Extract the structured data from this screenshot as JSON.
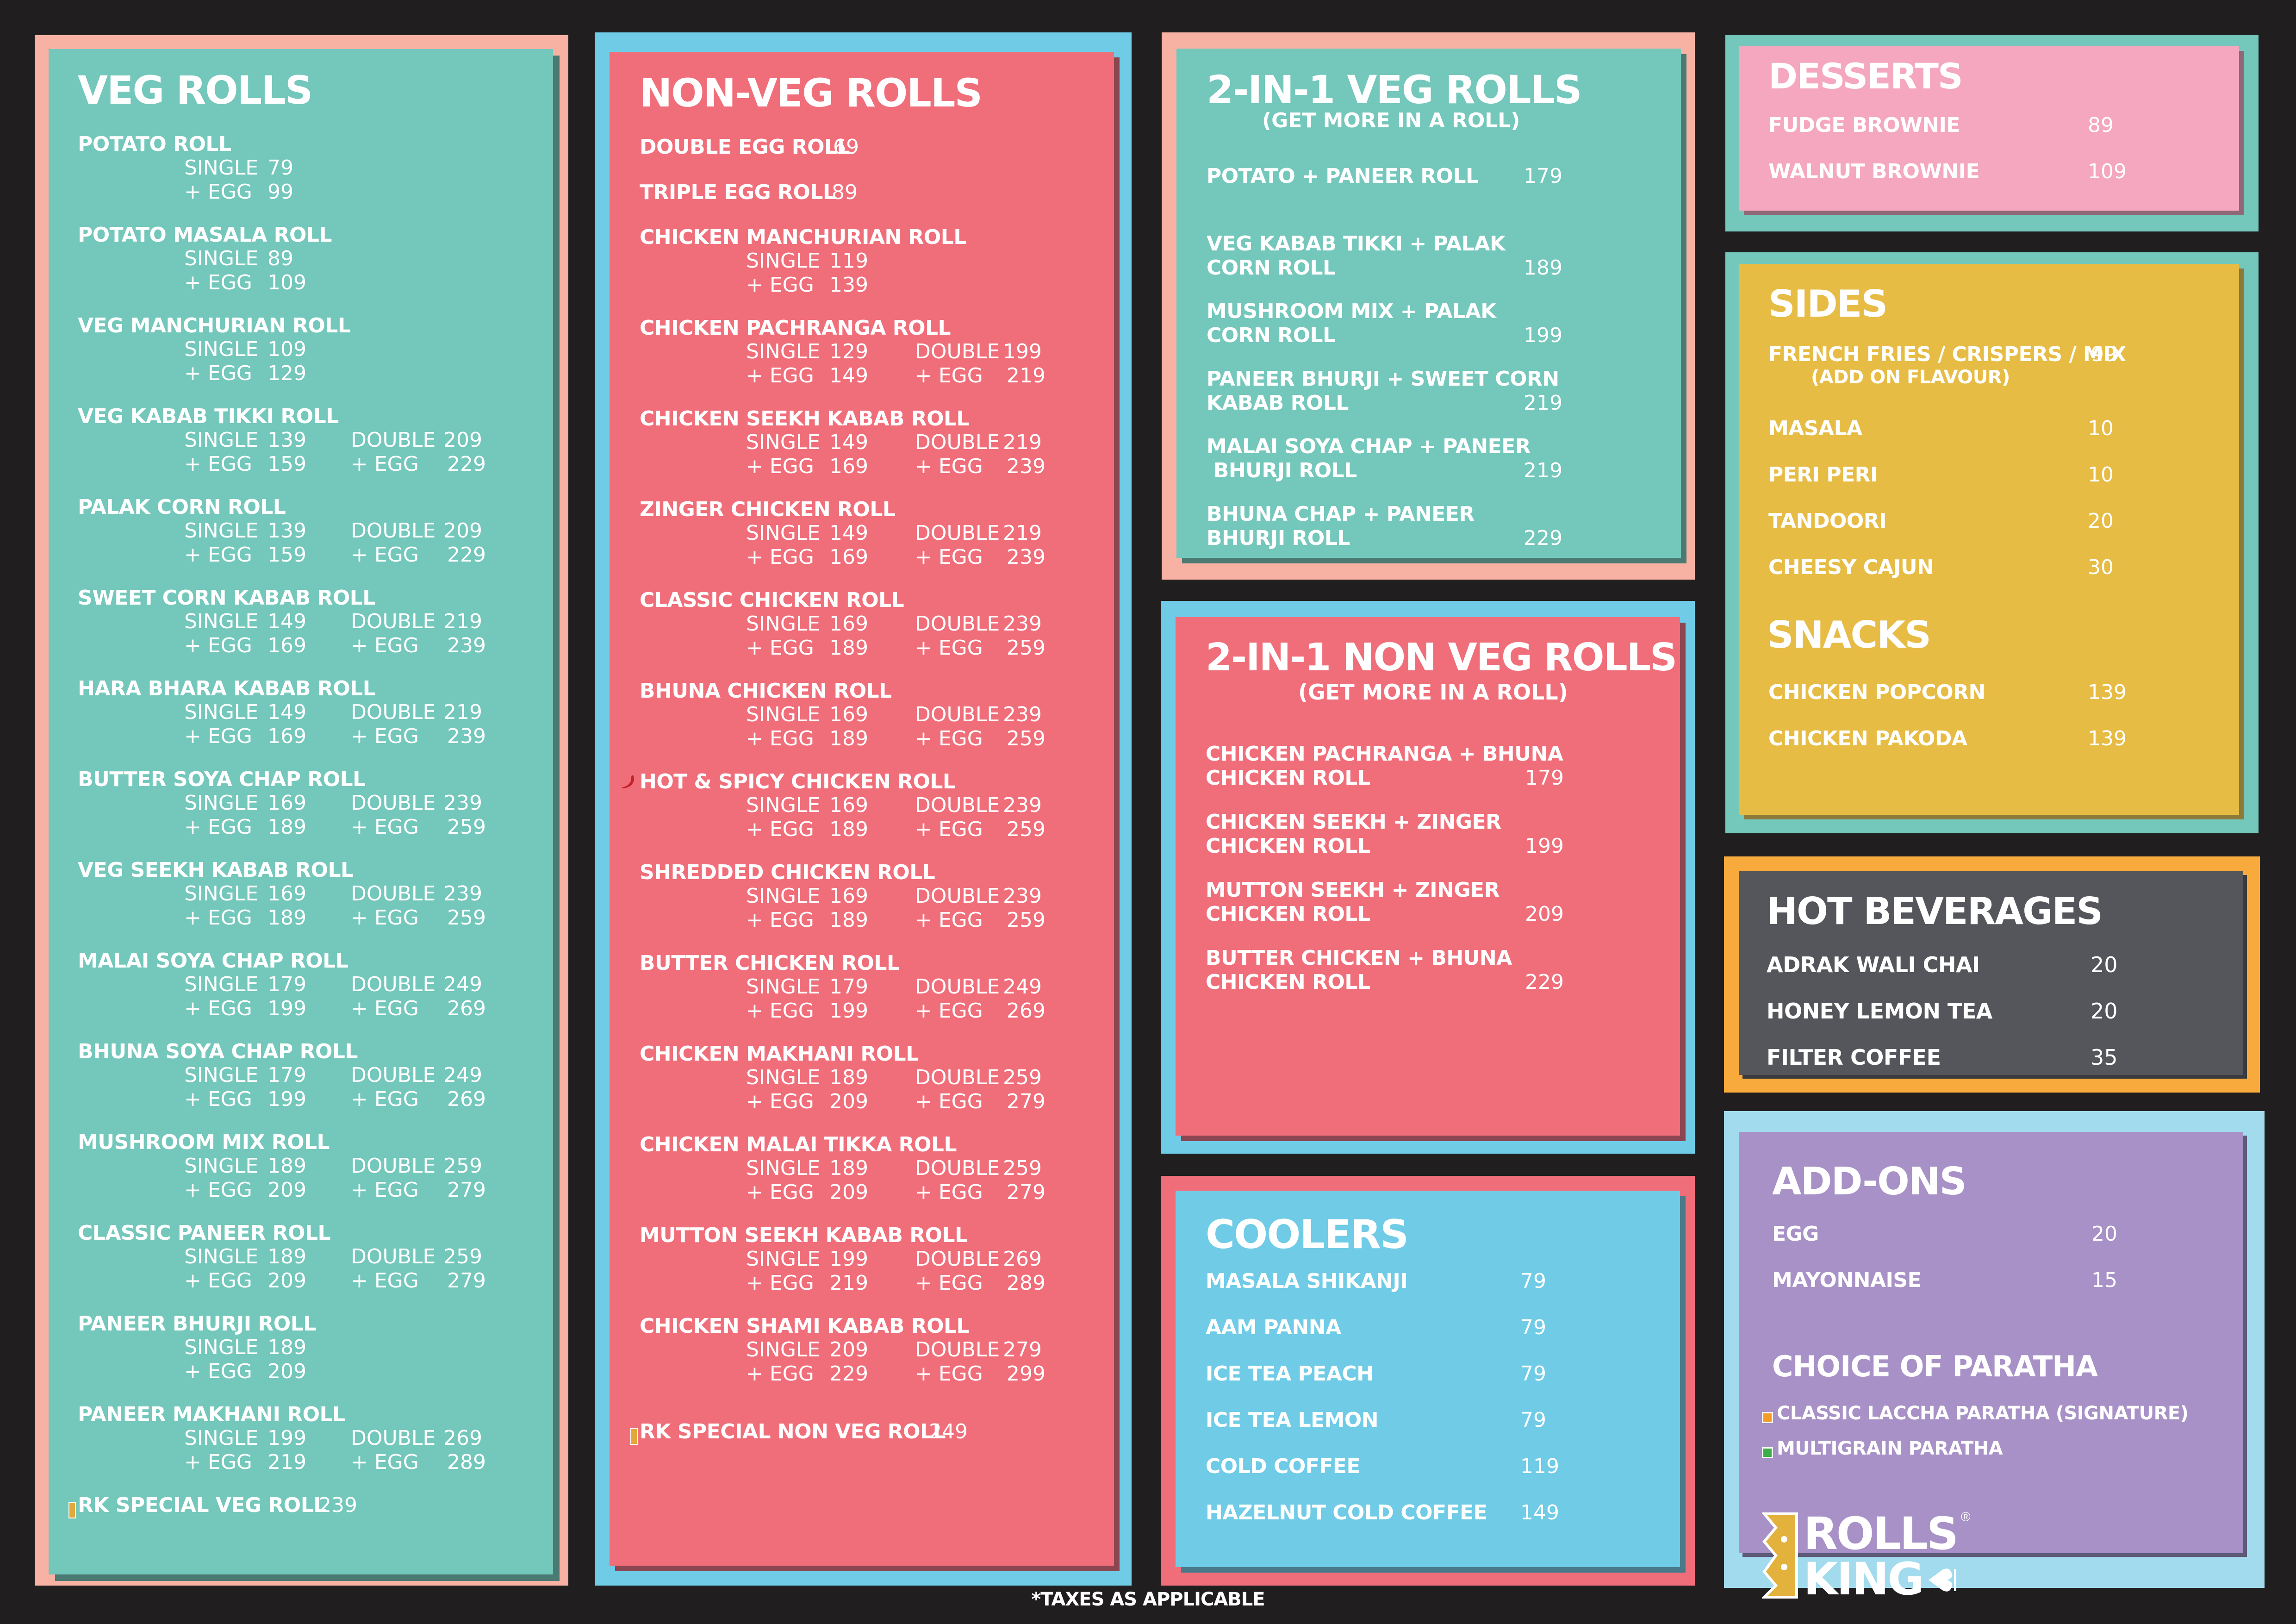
{
  "colors": {
    "background": "#201e1f",
    "teal": "#73c7bb",
    "salmon": "#f8b2a4",
    "coral": "#f06e7a",
    "sky": "#6fcbe6",
    "pink": "#f4a7bf",
    "mustard": "#e7bc45",
    "charcoal": "#55565b",
    "orange": "#f8ab3c",
    "lavender": "#a791c6",
    "lightblue": "#a2dbee"
  },
  "veg_rolls": {
    "title": "VEG ROLLS",
    "items": [
      {
        "name": "POTATO ROLL",
        "single": "79",
        "single_egg": "99"
      },
      {
        "name": "POTATO MASALA ROLL",
        "single": "89",
        "single_egg": "109"
      },
      {
        "name": "VEG MANCHURIAN ROLL",
        "single": "109",
        "single_egg": "129"
      },
      {
        "name": "VEG KABAB TIKKI ROLL",
        "single": "139",
        "single_egg": "159",
        "double": "209",
        "double_egg": "229"
      },
      {
        "name": "PALAK CORN ROLL",
        "single": "139",
        "single_egg": "159",
        "double": "209",
        "double_egg": "229"
      },
      {
        "name": "SWEET CORN KABAB ROLL",
        "single": "149",
        "single_egg": "169",
        "double": "219",
        "double_egg": "239"
      },
      {
        "name": "HARA BHARA KABAB ROLL",
        "single": "149",
        "single_egg": "169",
        "double": "219",
        "double_egg": "239"
      },
      {
        "name": "BUTTER SOYA CHAP ROLL",
        "single": "169",
        "single_egg": "189",
        "double": "239",
        "double_egg": "259"
      },
      {
        "name": "VEG SEEKH KABAB ROLL",
        "single": "169",
        "single_egg": "189",
        "double": "239",
        "double_egg": "259"
      },
      {
        "name": "MALAI SOYA CHAP ROLL",
        "single": "179",
        "single_egg": "199",
        "double": "249",
        "double_egg": "269"
      },
      {
        "name": "BHUNA SOYA CHAP ROLL",
        "single": "179",
        "single_egg": "199",
        "double": "249",
        "double_egg": "269"
      },
      {
        "name": "MUSHROOM MIX ROLL",
        "single": "189",
        "single_egg": "209",
        "double": "259",
        "double_egg": "279"
      },
      {
        "name": "CLASSIC PANEER ROLL",
        "single": "189",
        "single_egg": "209",
        "double": "259",
        "double_egg": "279"
      },
      {
        "name": "PANEER BHURJI ROLL",
        "single": "189",
        "single_egg": "209"
      },
      {
        "name": "PANEER MAKHANI ROLL",
        "single": "199",
        "single_egg": "219",
        "double": "269",
        "double_egg": "289"
      }
    ],
    "special": {
      "name": "RK SPECIAL VEG ROLL",
      "price": "239",
      "icon": "crown-icon"
    }
  },
  "labels": {
    "single": "SINGLE",
    "double": "DOUBLE",
    "plus_egg": "+ EGG"
  },
  "non_veg_rolls": {
    "title": "NON-VEG ROLLS",
    "simple_items": [
      {
        "name": "DOUBLE EGG ROLL",
        "price": "69"
      },
      {
        "name": "TRIPLE EGG ROLL",
        "price": "89"
      }
    ],
    "items": [
      {
        "name": "CHICKEN MANCHURIAN ROLL",
        "single": "119",
        "single_egg": "139"
      },
      {
        "name": "CHICKEN PACHRANGA ROLL",
        "single": "129",
        "single_egg": "149",
        "double": "199",
        "double_egg": "219"
      },
      {
        "name": "CHICKEN SEEKH KABAB ROLL",
        "single": "149",
        "single_egg": "169",
        "double": "219",
        "double_egg": "239"
      },
      {
        "name": "ZINGER CHICKEN ROLL",
        "single": "149",
        "single_egg": "169",
        "double": "219",
        "double_egg": "239"
      },
      {
        "name": "CLASSIC CHICKEN ROLL",
        "single": "169",
        "single_egg": "189",
        "double": "239",
        "double_egg": "259"
      },
      {
        "name": "BHUNA CHICKEN ROLL",
        "single": "169",
        "single_egg": "189",
        "double": "239",
        "double_egg": "259"
      },
      {
        "name": "HOT & SPICY CHICKEN  ROLL",
        "single": "169",
        "single_egg": "189",
        "double": "239",
        "double_egg": "259",
        "icon": "chili-icon"
      },
      {
        "name": "SHREDDED CHICKEN ROLL",
        "single": "169",
        "single_egg": "189",
        "double": "239",
        "double_egg": "259"
      },
      {
        "name": "BUTTER CHICKEN ROLL",
        "single": "179",
        "single_egg": "199",
        "double": "249",
        "double_egg": "269"
      },
      {
        "name": "CHICKEN MAKHANI ROLL",
        "single": "189",
        "single_egg": "209",
        "double": "259",
        "double_egg": "279"
      },
      {
        "name": "CHICKEN MALAI TIKKA ROLL",
        "single": "189",
        "single_egg": "209",
        "double": "259",
        "double_egg": "279"
      },
      {
        "name": "MUTTON SEEKH KABAB ROLL",
        "single": "199",
        "single_egg": "219",
        "double": "269",
        "double_egg": "289"
      },
      {
        "name": "CHICKEN SHAMI KABAB ROLL",
        "single": "209",
        "single_egg": "229",
        "double": "279",
        "double_egg": "299"
      }
    ],
    "special": {
      "name": "RK SPECIAL NON VEG ROLL",
      "price": "249",
      "icon": "crown-icon"
    }
  },
  "two_in_one_veg": {
    "title": "2-IN-1 VEG ROLLS",
    "subtitle": "(GET MORE IN A ROLL)",
    "items": [
      {
        "line1": "POTATO + PANEER ROLL",
        "line2": "",
        "price": "179"
      },
      {
        "line1": "VEG KABAB TIKKI + PALAK",
        "line2": "CORN ROLL",
        "price": "189"
      },
      {
        "line1": "MUSHROOM MIX + PALAK",
        "line2": "CORN ROLL",
        "price": "199"
      },
      {
        "line1": "PANEER BHURJI + SWEET CORN",
        "line2": "KABAB ROLL",
        "price": "219"
      },
      {
        "line1": "MALAI SOYA CHAP + PANEER",
        "line2": " BHURJI ROLL",
        "price": "219"
      },
      {
        "line1": "BHUNA CHAP + PANEER",
        "line2": "BHURJI ROLL",
        "price": "229"
      }
    ]
  },
  "two_in_one_non_veg": {
    "title": "2-IN-1 NON VEG ROLLS",
    "subtitle": "(GET MORE IN A ROLL)",
    "items": [
      {
        "line1": "CHICKEN PACHRANGA + BHUNA",
        "line2": "CHICKEN ROLL",
        "price": "179"
      },
      {
        "line1": "CHICKEN SEEKH + ZINGER",
        "line2": "CHICKEN ROLL",
        "price": "199"
      },
      {
        "line1": "MUTTON SEEKH + ZINGER",
        "line2": "CHICKEN ROLL",
        "price": "209"
      },
      {
        "line1": "BUTTER CHICKEN +  BHUNA",
        "line2": "CHICKEN ROLL",
        "price": "229"
      }
    ]
  },
  "coolers": {
    "title": "COOLERS",
    "items": [
      {
        "name": "MASALA SHIKANJI",
        "price": "79"
      },
      {
        "name": "AAM PANNA",
        "price": "79"
      },
      {
        "name": "ICE TEA PEACH",
        "price": "79"
      },
      {
        "name": "ICE TEA LEMON",
        "price": "79"
      },
      {
        "name": "COLD COFFEE",
        "price": "119"
      },
      {
        "name": "HAZELNUT COLD COFFEE",
        "price": "149"
      }
    ]
  },
  "desserts": {
    "title": "DESSERTS",
    "items": [
      {
        "name": "FUDGE BROWNIE",
        "price": "89"
      },
      {
        "name": "WALNUT BROWNIE",
        "price": "109"
      }
    ]
  },
  "sides": {
    "title": "SIDES",
    "main": {
      "name": "FRENCH FRIES / CRISPERS / MIX",
      "price": "99",
      "note": "(ADD ON FLAVOUR)"
    },
    "items": [
      {
        "name": "MASALA",
        "price": "10"
      },
      {
        "name": "PERI PERI",
        "price": "10"
      },
      {
        "name": "TANDOORI",
        "price": "20"
      },
      {
        "name": "CHEESY CAJUN",
        "price": "30"
      }
    ]
  },
  "snacks": {
    "title": "SNACKS",
    "items": [
      {
        "name": "CHICKEN POPCORN",
        "price": "139"
      },
      {
        "name": "CHICKEN PAKODA",
        "price": "139"
      }
    ]
  },
  "hot_beverages": {
    "title": "HOT BEVERAGES",
    "items": [
      {
        "name": "ADRAK WALI  CHAI",
        "price": "20"
      },
      {
        "name": "HONEY LEMON TEA",
        "price": "20"
      },
      {
        "name": "FILTER COFFEE",
        "price": "35"
      }
    ]
  },
  "add_ons": {
    "title": "ADD-ONS",
    "items": [
      {
        "name": "EGG",
        "price": "20"
      },
      {
        "name": "MAYONNAISE",
        "price": "15"
      }
    ],
    "paratha_title": "CHOICE OF PARATHA",
    "parathas": [
      {
        "name": "CLASSIC LACCHA PARATHA (SIGNATURE)",
        "marker_color": "#f39c2a"
      },
      {
        "name": "MULTIGRAIN PARATHA",
        "marker_color": "#3fae49"
      }
    ]
  },
  "brand": {
    "line1": "ROLLS",
    "line2": "KING",
    "registered": "®"
  },
  "footer": {
    "note": "*TAXES AS APPLICABLE"
  }
}
